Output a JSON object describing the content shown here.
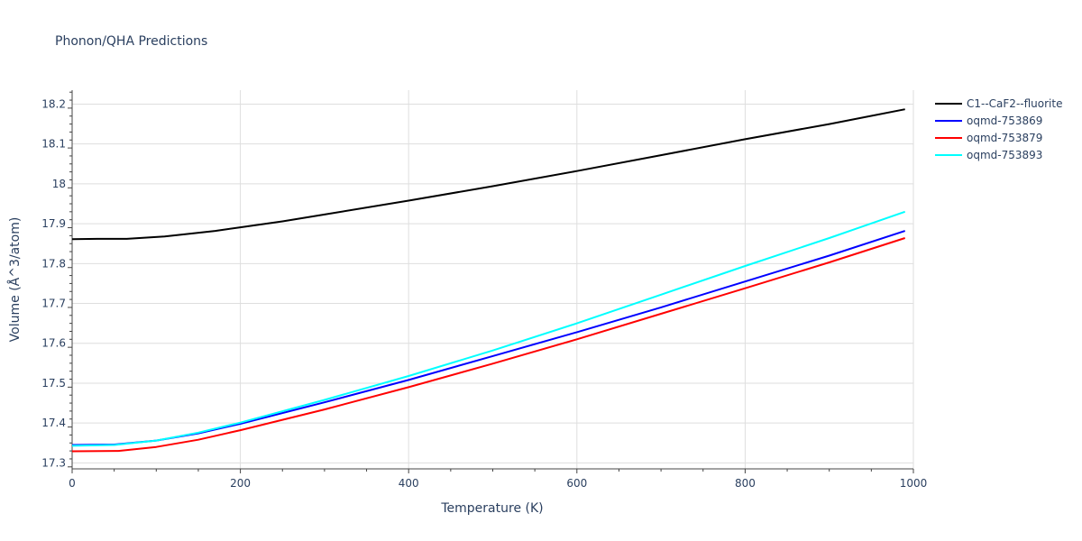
{
  "chart_data": {
    "type": "line",
    "title": "Phonon/QHA Predictions",
    "xlabel": "Temperature (K)",
    "ylabel": "Volume (Å^3/atom)",
    "xlim": [
      0,
      1000
    ],
    "ylim": [
      17.285,
      18.235
    ],
    "xticks": [
      0,
      200,
      400,
      600,
      800,
      1000
    ],
    "yticks": [
      17.3,
      17.4,
      17.5,
      17.6,
      17.7,
      17.8,
      17.9,
      18.0,
      18.1,
      18.2
    ],
    "xtick_labels": [
      "0",
      "200",
      "400",
      "600",
      "800",
      "1000"
    ],
    "ytick_labels": [
      "17.3",
      "17.4",
      "17.5",
      "17.6",
      "17.7",
      "17.8",
      "17.9",
      "18",
      "18.1",
      "18.2"
    ],
    "grid": true,
    "legend_position": "right",
    "series": [
      {
        "name": "C1--CaF2--fluorite",
        "color": "#000000",
        "x": [
          0,
          30,
          65,
          110,
          170,
          200,
          250,
          300,
          400,
          500,
          600,
          700,
          800,
          900,
          990
        ],
        "y": [
          17.861,
          17.862,
          17.862,
          17.868,
          17.882,
          17.891,
          17.906,
          17.923,
          17.958,
          17.994,
          18.032,
          18.072,
          18.112,
          18.15,
          18.187
        ]
      },
      {
        "name": "oqmd-753869",
        "color": "#0000ff",
        "x": [
          0,
          50,
          100,
          150,
          200,
          300,
          400,
          500,
          600,
          700,
          800,
          900,
          990
        ],
        "y": [
          17.345,
          17.346,
          17.356,
          17.374,
          17.398,
          17.452,
          17.508,
          17.568,
          17.628,
          17.69,
          17.755,
          17.82,
          17.882
        ]
      },
      {
        "name": "oqmd-753879",
        "color": "#ff0000",
        "x": [
          0,
          55,
          100,
          150,
          200,
          300,
          400,
          500,
          600,
          700,
          800,
          900,
          990
        ],
        "y": [
          17.329,
          17.33,
          17.34,
          17.358,
          17.382,
          17.434,
          17.49,
          17.549,
          17.61,
          17.674,
          17.738,
          17.803,
          17.864
        ]
      },
      {
        "name": "oqmd-753893",
        "color": "#00ffff",
        "x": [
          0,
          50,
          100,
          150,
          200,
          300,
          400,
          500,
          600,
          700,
          800,
          900,
          990
        ],
        "y": [
          17.343,
          17.345,
          17.356,
          17.376,
          17.401,
          17.458,
          17.518,
          17.582,
          17.65,
          17.722,
          17.794,
          17.864,
          17.93
        ]
      }
    ]
  }
}
